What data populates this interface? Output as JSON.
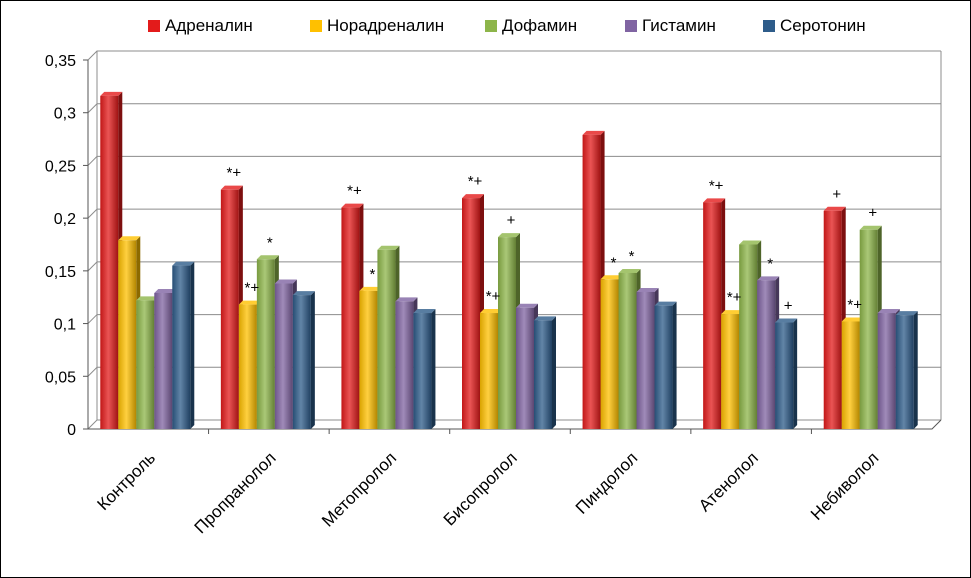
{
  "chart_data": {
    "type": "bar",
    "title": "",
    "xlabel": "",
    "ylabel": "",
    "ylim": [
      0,
      0.35
    ],
    "yticks": [
      "0",
      "0,05",
      "0,1",
      "0,15",
      "0,2",
      "0,25",
      "0,3",
      "0,35"
    ],
    "grid": true,
    "legend_position": "top",
    "categories": [
      "Контроль",
      "Пропранолол",
      "Метопролол",
      "Бисопролол",
      "Пиндолол",
      "Атенолол",
      "Небиволол"
    ],
    "series": [
      {
        "name": "Адреналин",
        "color": "#e31b1b",
        "values": [
          0.316,
          0.227,
          0.21,
          0.219,
          0.279,
          0.215,
          0.207
        ],
        "annotations": [
          "",
          "*+",
          "*+",
          "*+",
          "",
          "*+",
          "+"
        ]
      },
      {
        "name": "Норадреналин",
        "color": "#ffc000",
        "values": [
          0.179,
          0.118,
          0.131,
          0.11,
          0.142,
          0.109,
          0.102
        ],
        "annotations": [
          "",
          "*+",
          "*",
          "*+",
          "*",
          "*+",
          "*+"
        ]
      },
      {
        "name": "Дофамин",
        "color": "#8db54a",
        "values": [
          0.122,
          0.161,
          0.17,
          0.182,
          0.148,
          0.175,
          0.189
        ],
        "annotations": [
          "",
          "*",
          "",
          "+",
          "*",
          "",
          "+"
        ]
      },
      {
        "name": "Гистамин",
        "color": "#8064a2",
        "values": [
          0.129,
          0.138,
          0.121,
          0.115,
          0.13,
          0.141,
          0.11
        ],
        "annotations": [
          "",
          "",
          "",
          "",
          "",
          "*",
          ""
        ]
      },
      {
        "name": "Серотонин",
        "color": "#2e5c8a",
        "values": [
          0.155,
          0.127,
          0.11,
          0.103,
          0.117,
          0.101,
          0.108
        ],
        "annotations": [
          "",
          "",
          "",
          "",
          "",
          "+",
          ""
        ]
      }
    ]
  }
}
